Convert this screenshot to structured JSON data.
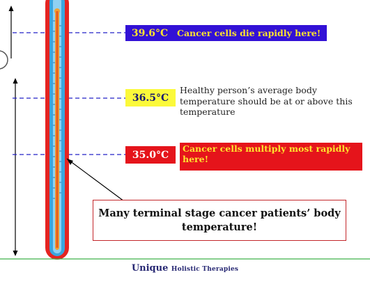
{
  "levels": [
    {
      "temp": "39.6°C",
      "description": "Cancer cells die rapidly here!",
      "color": "#3211d6"
    },
    {
      "temp": "36.5°C",
      "description": "Healthy person’s average body temperature should be at or above this temperature",
      "color": "#fbf93a"
    },
    {
      "temp": "35.0°C",
      "description": "Cancer cells multiply most rapidly here!",
      "color": "#e5141b"
    }
  ],
  "callout": "Many terminal stage cancer patients’ body temperature!",
  "footer": {
    "brand": "Unique",
    "suffix": "Holistic Therapies"
  },
  "colors": {
    "dashed_line": "#2320c8",
    "thermometer_outer": "#e52421",
    "thermometer_inner": "#3aa6df",
    "mercury": "#f0a132",
    "footer_rule": "#3fb049"
  }
}
